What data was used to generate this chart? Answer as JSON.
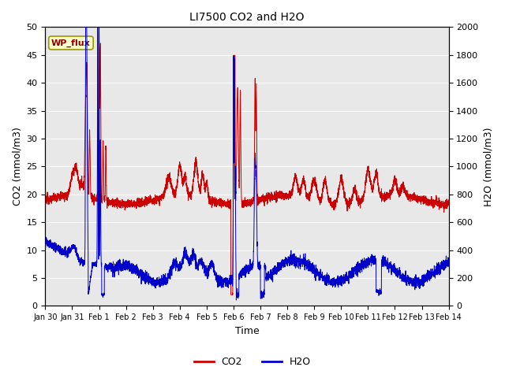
{
  "title": "LI7500 CO2 and H2O",
  "xlabel": "Time",
  "ylabel_left": "CO2 (mmol/m3)",
  "ylabel_right": "H2O (mmol/m3)",
  "annotation": "WP_flux",
  "ylim_left": [
    0,
    50
  ],
  "ylim_right": [
    0,
    2000
  ],
  "yticks_left": [
    0,
    5,
    10,
    15,
    20,
    25,
    30,
    35,
    40,
    45,
    50
  ],
  "yticks_right": [
    0,
    200,
    400,
    600,
    800,
    1000,
    1200,
    1400,
    1600,
    1800,
    2000
  ],
  "xtick_labels": [
    "Jan 30",
    "Jan 31",
    "Feb 1",
    "Feb 2",
    "Feb 3",
    "Feb 4",
    "Feb 5",
    "Feb 6",
    "Feb 7",
    "Feb 8",
    "Feb 9",
    "Feb 10",
    "Feb 11",
    "Feb 12",
    "Feb 13",
    "Feb 14"
  ],
  "co2_color": "#cc0000",
  "h2o_color": "#0000cc",
  "plot_bg_color": "#e8e8e8",
  "legend_co2": "CO2",
  "legend_h2o": "H2O",
  "grid_color": "white",
  "annotation_bg": "#ffffcc",
  "annotation_border": "#999900"
}
